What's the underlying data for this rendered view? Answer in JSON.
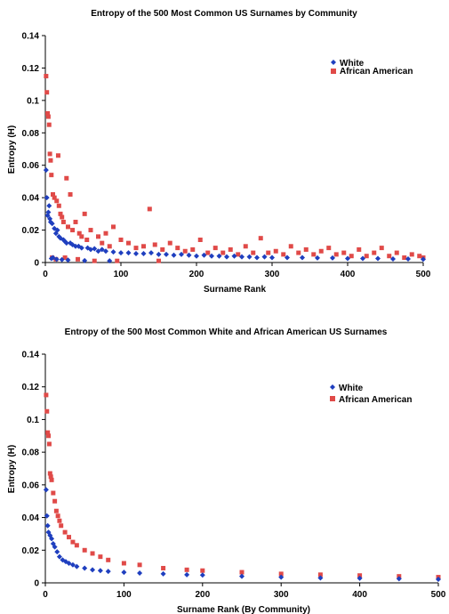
{
  "chart_data": [
    {
      "type": "scatter",
      "title": "Entropy of the 500 Most Common US Surnames by Community",
      "xlabel": "Surname Rank",
      "ylabel": "Entropy (H)",
      "xlim": [
        0,
        500
      ],
      "ylim": [
        0,
        0.14
      ],
      "xticks": [
        "0",
        "100",
        "200",
        "300",
        "400",
        "500"
      ],
      "yticks": [
        "0",
        "0.02",
        "0.04",
        "0.06",
        "0.08",
        "0.1",
        "0.12",
        "0.14"
      ],
      "grid": false,
      "legend": "top-right",
      "series": [
        {
          "name": "White",
          "color": "#1f3fbf",
          "marker": "diamond",
          "points": [
            [
              1,
              0.057
            ],
            [
              2,
              0.04
            ],
            [
              3,
              0.029
            ],
            [
              4,
              0.031
            ],
            [
              5,
              0.035
            ],
            [
              6,
              0.027
            ],
            [
              7,
              0.025
            ],
            [
              8,
              0.0025
            ],
            [
              9,
              0.024
            ],
            [
              10,
              0.003
            ],
            [
              12,
              0.021
            ],
            [
              14,
              0.018
            ],
            [
              15,
              0.002
            ],
            [
              16,
              0.02
            ],
            [
              18,
              0.016
            ],
            [
              20,
              0.015
            ],
            [
              22,
              0.0018
            ],
            [
              24,
              0.014
            ],
            [
              26,
              0.013
            ],
            [
              28,
              0.012
            ],
            [
              30,
              0.0015
            ],
            [
              33,
              0.012
            ],
            [
              36,
              0.011
            ],
            [
              40,
              0.01
            ],
            [
              44,
              0.01
            ],
            [
              48,
              0.009
            ],
            [
              52,
              0.0012
            ],
            [
              56,
              0.009
            ],
            [
              60,
              0.008
            ],
            [
              65,
              0.0085
            ],
            [
              70,
              0.007
            ],
            [
              75,
              0.008
            ],
            [
              80,
              0.007
            ],
            [
              85,
              0.001
            ],
            [
              90,
              0.0065
            ],
            [
              100,
              0.006
            ],
            [
              110,
              0.006
            ],
            [
              120,
              0.0055
            ],
            [
              130,
              0.0055
            ],
            [
              140,
              0.006
            ],
            [
              150,
              0.005
            ],
            [
              160,
              0.005
            ],
            [
              170,
              0.0045
            ],
            [
              180,
              0.005
            ],
            [
              190,
              0.0045
            ],
            [
              200,
              0.004
            ],
            [
              210,
              0.0045
            ],
            [
              220,
              0.004
            ],
            [
              230,
              0.004
            ],
            [
              240,
              0.0035
            ],
            [
              250,
              0.004
            ],
            [
              260,
              0.0035
            ],
            [
              270,
              0.0035
            ],
            [
              280,
              0.003
            ],
            [
              290,
              0.0035
            ],
            [
              300,
              0.003
            ],
            [
              320,
              0.003
            ],
            [
              340,
              0.003
            ],
            [
              360,
              0.0028
            ],
            [
              380,
              0.0028
            ],
            [
              400,
              0.0025
            ],
            [
              420,
              0.0025
            ],
            [
              440,
              0.0025
            ],
            [
              460,
              0.0022
            ],
            [
              480,
              0.0022
            ],
            [
              500,
              0.002
            ]
          ]
        },
        {
          "name": "African American",
          "color": "#e04a48",
          "marker": "square",
          "points": [
            [
              1,
              0.115
            ],
            [
              2,
              0.105
            ],
            [
              3,
              0.092
            ],
            [
              4,
              0.09
            ],
            [
              5,
              0.085
            ],
            [
              6,
              0.067
            ],
            [
              7,
              0.063
            ],
            [
              8,
              0.054
            ],
            [
              9,
              0.003
            ],
            [
              10,
              0.042
            ],
            [
              12,
              0.04
            ],
            [
              14,
              0.002
            ],
            [
              15,
              0.038
            ],
            [
              17,
              0.066
            ],
            [
              18,
              0.035
            ],
            [
              20,
              0.03
            ],
            [
              22,
              0.028
            ],
            [
              24,
              0.025
            ],
            [
              26,
              0.003
            ],
            [
              28,
              0.052
            ],
            [
              30,
              0.022
            ],
            [
              33,
              0.042
            ],
            [
              36,
              0.02
            ],
            [
              40,
              0.025
            ],
            [
              43,
              0.002
            ],
            [
              45,
              0.018
            ],
            [
              48,
              0.016
            ],
            [
              52,
              0.03
            ],
            [
              55,
              0.014
            ],
            [
              60,
              0.02
            ],
            [
              65,
              0.001
            ],
            [
              70,
              0.016
            ],
            [
              75,
              0.012
            ],
            [
              80,
              0.018
            ],
            [
              85,
              0.01
            ],
            [
              90,
              0.022
            ],
            [
              95,
              0.001
            ],
            [
              100,
              0.014
            ],
            [
              110,
              0.012
            ],
            [
              120,
              0.009
            ],
            [
              130,
              0.01
            ],
            [
              138,
              0.033
            ],
            [
              145,
              0.011
            ],
            [
              150,
              0.001
            ],
            [
              155,
              0.008
            ],
            [
              165,
              0.012
            ],
            [
              175,
              0.009
            ],
            [
              185,
              0.007
            ],
            [
              195,
              0.008
            ],
            [
              205,
              0.014
            ],
            [
              215,
              0.006
            ],
            [
              225,
              0.009
            ],
            [
              235,
              0.006
            ],
            [
              245,
              0.008
            ],
            [
              255,
              0.005
            ],
            [
              265,
              0.01
            ],
            [
              275,
              0.006
            ],
            [
              285,
              0.015
            ],
            [
              295,
              0.006
            ],
            [
              305,
              0.007
            ],
            [
              315,
              0.005
            ],
            [
              325,
              0.01
            ],
            [
              335,
              0.006
            ],
            [
              345,
              0.008
            ],
            [
              355,
              0.005
            ],
            [
              365,
              0.007
            ],
            [
              375,
              0.009
            ],
            [
              385,
              0.005
            ],
            [
              395,
              0.006
            ],
            [
              405,
              0.004
            ],
            [
              415,
              0.008
            ],
            [
              425,
              0.004
            ],
            [
              435,
              0.006
            ],
            [
              445,
              0.009
            ],
            [
              455,
              0.004
            ],
            [
              465,
              0.006
            ],
            [
              475,
              0.003
            ],
            [
              485,
              0.005
            ],
            [
              495,
              0.004
            ],
            [
              500,
              0.003
            ]
          ]
        }
      ]
    },
    {
      "type": "scatter",
      "title": "Entropy of the 500 Most Common White and African American US Surnames",
      "xlabel": "Surname Rank (By Community)",
      "ylabel": "Entropy (H)",
      "xlim": [
        0,
        500
      ],
      "ylim": [
        0,
        0.14
      ],
      "xticks": [
        "0",
        "100",
        "200",
        "300",
        "400",
        "500"
      ],
      "yticks": [
        "0",
        "0.02",
        "0.04",
        "0.06",
        "0.08",
        "0.1",
        "0.12",
        "0.14"
      ],
      "grid": false,
      "legend": "top-right",
      "series": [
        {
          "name": "White",
          "color": "#1f3fbf",
          "marker": "diamond",
          "points": [
            [
              1,
              0.057
            ],
            [
              2,
              0.041
            ],
            [
              3,
              0.035
            ],
            [
              4,
              0.031
            ],
            [
              6,
              0.029
            ],
            [
              8,
              0.027
            ],
            [
              10,
              0.024
            ],
            [
              12,
              0.022
            ],
            [
              15,
              0.019
            ],
            [
              18,
              0.016
            ],
            [
              22,
              0.014
            ],
            [
              26,
              0.013
            ],
            [
              30,
              0.012
            ],
            [
              35,
              0.011
            ],
            [
              40,
              0.01
            ],
            [
              50,
              0.009
            ],
            [
              60,
              0.008
            ],
            [
              70,
              0.0075
            ],
            [
              80,
              0.007
            ],
            [
              100,
              0.0065
            ],
            [
              120,
              0.006
            ],
            [
              150,
              0.0055
            ],
            [
              180,
              0.005
            ],
            [
              200,
              0.0048
            ],
            [
              250,
              0.004
            ],
            [
              300,
              0.0035
            ],
            [
              350,
              0.003
            ],
            [
              400,
              0.0028
            ],
            [
              450,
              0.0025
            ],
            [
              500,
              0.0022
            ]
          ]
        },
        {
          "name": "African American",
          "color": "#e04a48",
          "marker": "square",
          "points": [
            [
              1,
              0.115
            ],
            [
              2,
              0.105
            ],
            [
              3,
              0.092
            ],
            [
              4,
              0.09
            ],
            [
              5,
              0.085
            ],
            [
              6,
              0.067
            ],
            [
              7,
              0.065
            ],
            [
              8,
              0.063
            ],
            [
              10,
              0.055
            ],
            [
              12,
              0.05
            ],
            [
              14,
              0.044
            ],
            [
              16,
              0.041
            ],
            [
              18,
              0.038
            ],
            [
              20,
              0.035
            ],
            [
              25,
              0.031
            ],
            [
              30,
              0.028
            ],
            [
              35,
              0.025
            ],
            [
              40,
              0.023
            ],
            [
              50,
              0.02
            ],
            [
              60,
              0.018
            ],
            [
              70,
              0.016
            ],
            [
              80,
              0.014
            ],
            [
              100,
              0.012
            ],
            [
              120,
              0.011
            ],
            [
              150,
              0.009
            ],
            [
              180,
              0.008
            ],
            [
              200,
              0.0075
            ],
            [
              250,
              0.0065
            ],
            [
              300,
              0.0055
            ],
            [
              350,
              0.005
            ],
            [
              400,
              0.0045
            ],
            [
              450,
              0.004
            ],
            [
              500,
              0.0035
            ]
          ]
        }
      ]
    }
  ]
}
